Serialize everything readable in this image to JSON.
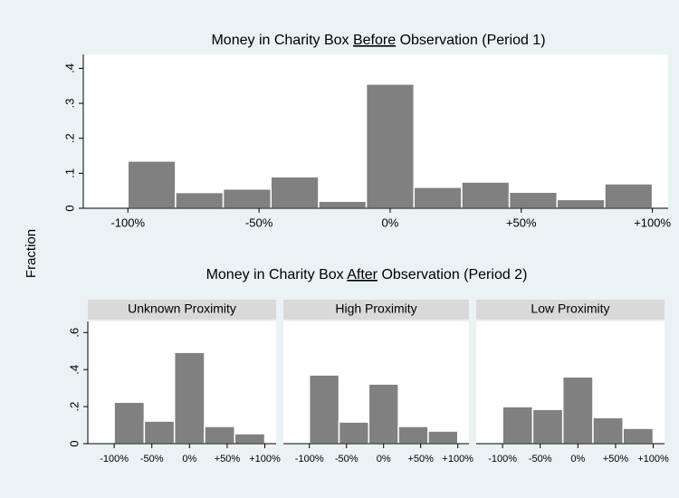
{
  "ylabel": "Fraction",
  "group_title": [
    "Money in Charity Box ",
    "After",
    " Observation (Period 2)"
  ],
  "chart_data": [
    {
      "type": "histogram",
      "title": [
        "Money in Charity Box ",
        "Before",
        " Observation (Period 1)"
      ],
      "bins": [
        -100,
        -81.82,
        -63.64,
        -45.45,
        -27.27,
        -9.09,
        9.09,
        27.27,
        45.45,
        63.64,
        81.82,
        100
      ],
      "values": [
        0.135,
        0.045,
        0.055,
        0.09,
        0.02,
        0.355,
        0.06,
        0.075,
        0.046,
        0.025,
        0.07
      ],
      "color": "#808080",
      "xlim": [
        -117,
        106
      ],
      "xticks": [
        {
          "value": -100,
          "label": "-100%"
        },
        {
          "value": -50,
          "label": "-50%"
        },
        {
          "value": 0,
          "label": "0%"
        },
        {
          "value": 50,
          "label": "+50%"
        },
        {
          "value": 100,
          "label": "+100%"
        }
      ],
      "ylim": [
        0,
        0.44
      ],
      "yticks": [
        0,
        {
          "value": 0.1,
          "label": ".1"
        },
        {
          "value": 0.2,
          "label": ".2"
        },
        {
          "value": 0.3,
          "label": ".3"
        },
        {
          "value": 0.4,
          "label": ".4"
        }
      ]
    },
    {
      "type": "histogram",
      "panel": "Unknown Proximity",
      "bins": [
        -100,
        -60,
        -20,
        20,
        60,
        100
      ],
      "values": [
        0.224,
        0.122,
        0.493,
        0.093,
        0.054
      ],
      "color": "#808080",
      "xlim": [
        -135,
        115
      ],
      "xticks": [
        {
          "value": -100,
          "label": "-100%"
        },
        {
          "value": -50,
          "label": "-50%"
        },
        {
          "value": 0,
          "label": "0%"
        },
        {
          "value": 50,
          "label": "+50%"
        },
        {
          "value": 100,
          "label": "+100%"
        }
      ],
      "ylim": [
        0,
        0.66
      ],
      "yticks": [
        0,
        {
          "value": 0.2,
          "label": ".2"
        },
        {
          "value": 0.4,
          "label": ".4"
        },
        {
          "value": 0.6,
          "label": ".6"
        }
      ]
    },
    {
      "type": "histogram",
      "panel": "High Proximity",
      "bins": [
        -100,
        -60,
        -20,
        20,
        60,
        100
      ],
      "values": [
        0.371,
        0.117,
        0.322,
        0.093,
        0.068
      ],
      "color": "#808080",
      "xlim": [
        -135,
        115
      ],
      "xticks": [
        {
          "value": -100,
          "label": "-100%"
        },
        {
          "value": -50,
          "label": "-50%"
        },
        {
          "value": 0,
          "label": "0%"
        },
        {
          "value": 50,
          "label": "+50%"
        },
        {
          "value": 100,
          "label": "+100%"
        }
      ],
      "ylim": [
        0,
        0.66
      ]
    },
    {
      "type": "histogram",
      "panel": "Low Proximity",
      "bins": [
        -100,
        -60,
        -20,
        20,
        60,
        100
      ],
      "values": [
        0.2,
        0.185,
        0.361,
        0.141,
        0.083
      ],
      "color": "#808080",
      "xlim": [
        -135,
        115
      ],
      "xticks": [
        {
          "value": -100,
          "label": "-100%"
        },
        {
          "value": -50,
          "label": "-50%"
        },
        {
          "value": 0,
          "label": "0%"
        },
        {
          "value": 50,
          "label": "+50%"
        },
        {
          "value": 100,
          "label": "+100%"
        }
      ],
      "ylim": [
        0,
        0.66
      ]
    }
  ]
}
